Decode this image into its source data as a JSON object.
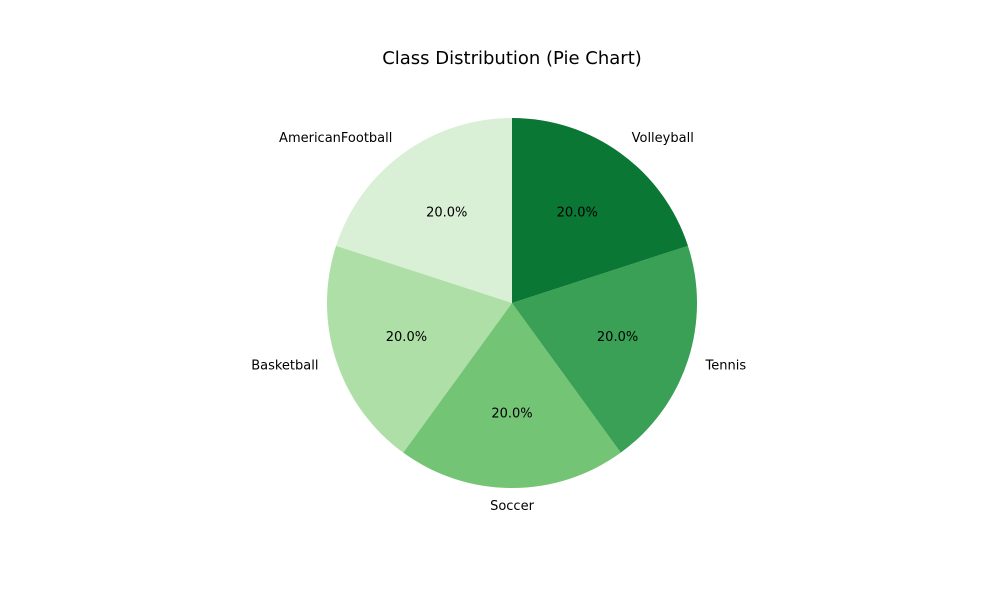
{
  "chart_data": {
    "type": "pie",
    "title": "Class Distribution (Pie Chart)",
    "categories": [
      "AmericanFootball",
      "Basketball",
      "Soccer",
      "Tennis",
      "Volleyball"
    ],
    "values": [
      20.0,
      20.0,
      20.0,
      20.0,
      20.0
    ],
    "percent_labels": [
      "20.0%",
      "20.0%",
      "20.0%",
      "20.0%",
      "20.0%"
    ],
    "colors": [
      "#daf0d6",
      "#aedfa7",
      "#74c476",
      "#39a055",
      "#0b7734"
    ],
    "start_angle_deg": 90,
    "direction": "counterclockwise",
    "legend": "none",
    "grid": false
  }
}
